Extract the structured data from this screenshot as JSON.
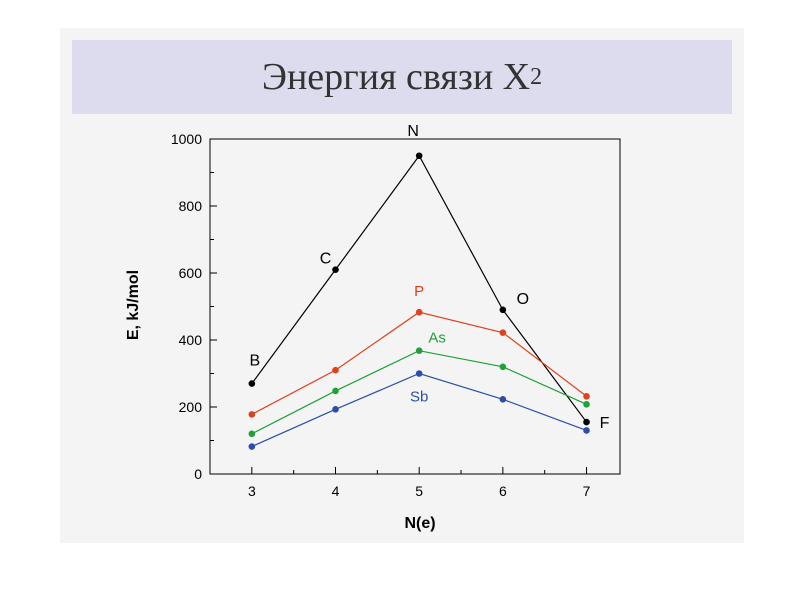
{
  "slide": {
    "title_main": "Энергия связи X",
    "title_sub": "2"
  },
  "colors": {
    "background": "#f4f4f4",
    "title_band": "#dcdcee",
    "axis": "#000000"
  },
  "chart_data": {
    "type": "line",
    "title": "",
    "xlabel": "N(e)",
    "ylabel": "E, kJ/mol",
    "xlim": [
      2.5,
      7.4
    ],
    "ylim": [
      0,
      1000
    ],
    "xticks": [
      3,
      4,
      5,
      6,
      7
    ],
    "yticks": [
      0,
      200,
      400,
      600,
      800,
      1000
    ],
    "grid": false,
    "series": [
      {
        "color": "#000000",
        "x": [
          3,
          4,
          5,
          6,
          7
        ],
        "values": [
          270,
          610,
          950,
          490,
          155
        ],
        "point_labels": [
          "B",
          "C",
          "N",
          "O",
          "F"
        ]
      },
      {
        "name": "P",
        "color": "#e0401c",
        "x": [
          3,
          4,
          5,
          6,
          7
        ],
        "values": [
          178,
          310,
          483,
          422,
          232
        ]
      },
      {
        "name": "As",
        "color": "#1fa038",
        "x": [
          3,
          4,
          5,
          6,
          7
        ],
        "values": [
          120,
          248,
          368,
          320,
          208
        ]
      },
      {
        "name": "Sb",
        "color": "#2d4ea8",
        "x": [
          3,
          4,
          5,
          6,
          7
        ],
        "values": [
          82,
          193,
          300,
          223,
          130
        ]
      }
    ]
  }
}
